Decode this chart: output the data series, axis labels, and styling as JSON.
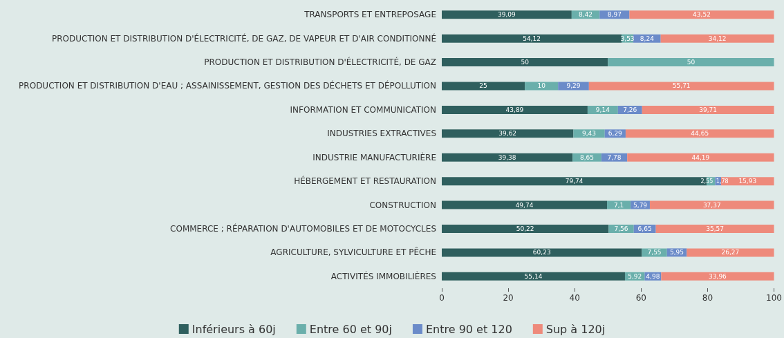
{
  "chart_data": {
    "type": "bar",
    "orientation": "horizontal",
    "stacked": true,
    "categories": [
      "TRANSPORTS ET ENTREPOSAGE",
      "PRODUCTION ET DISTRIBUTION D'ÉLECTRICITÉ, DE GAZ, DE VAPEUR ET D'AIR CONDITIONNÉ",
      "PRODUCTION ET DISTRIBUTION D'ÉLECTRICITÉ, DE GAZ",
      "PRODUCTION ET DISTRIBUTION D'EAU ; ASSAINISSEMENT, GESTION DES DÉCHETS ET DÉPOLLUTION",
      "INFORMATION ET COMMUNICATION",
      "INDUSTRIES EXTRACTIVES",
      "INDUSTRIE MANUFACTURIÈRE",
      "HÉBERGEMENT ET RESTAURATION",
      "CONSTRUCTION",
      "COMMERCE ; RÉPARATION D'AUTOMOBILES ET DE MOTOCYCLES",
      "AGRICULTURE, SYLVICULTURE ET PÊCHE",
      "ACTIVITÉS IMMOBILIÈRES"
    ],
    "series": [
      {
        "name": "Inférieurs à 60j",
        "color": "#2f5f5e",
        "values": [
          39.09,
          54.12,
          50,
          25,
          43.89,
          39.62,
          39.38,
          79.74,
          49.74,
          50.22,
          60.23,
          55.14
        ],
        "value_labels": [
          "39,09",
          "54,12",
          "50",
          "25",
          "43,89",
          "39,62",
          "39,38",
          "79,74",
          "49,74",
          "50,22",
          "60,23",
          "55,14"
        ]
      },
      {
        "name": "Entre 60 et 90j",
        "color": "#6aafab",
        "values": [
          8.42,
          3.53,
          50,
          10,
          9.14,
          9.43,
          8.65,
          2.55,
          7.1,
          7.56,
          7.55,
          5.92
        ],
        "value_labels": [
          "8,42",
          "3,53",
          "50",
          "10",
          "9,14",
          "9,43",
          "8,65",
          "2,55",
          "7,1",
          "7,56",
          "7,55",
          "5,92"
        ]
      },
      {
        "name": "Entre 90 et 120",
        "color": "#6b8bc9",
        "values": [
          8.97,
          8.24,
          null,
          9.29,
          7.26,
          6.29,
          7.78,
          1.78,
          5.79,
          6.65,
          5.95,
          4.98
        ],
        "value_labels": [
          "8,97",
          "8,24",
          null,
          "9,29",
          "7,26",
          "6,29",
          "7,78",
          "1,78",
          "5,79",
          "6,65",
          "5,95",
          "4,98"
        ]
      },
      {
        "name": "Sup à 120j",
        "color": "#ee8a7b",
        "values": [
          43.52,
          34.12,
          null,
          55.71,
          39.71,
          44.65,
          44.19,
          15.93,
          37.37,
          35.57,
          26.27,
          33.96
        ],
        "value_labels": [
          "43,52",
          "34,12",
          null,
          "55,71",
          "39,71",
          "44,65",
          "44,19",
          "15,93",
          "37,37",
          "35,57",
          "26,27",
          "33,96"
        ]
      }
    ],
    "xlim": [
      0,
      100
    ],
    "xticks": [
      0,
      20,
      40,
      60,
      80,
      100
    ],
    "grid": false,
    "legend": "bottom"
  }
}
